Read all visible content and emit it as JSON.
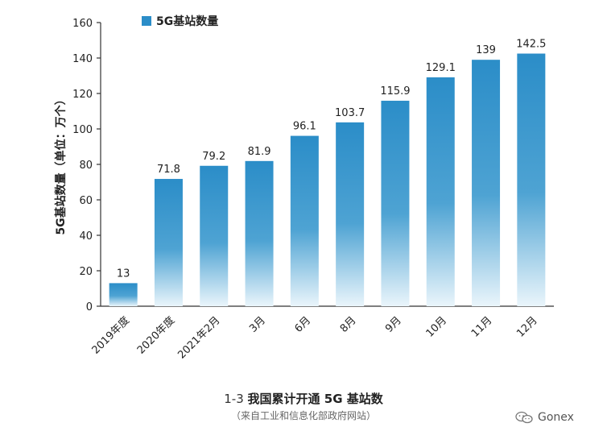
{
  "chart_data": {
    "type": "bar",
    "categories": [
      "2019年度",
      "2020年度",
      "2021年2月",
      "3月",
      "6月",
      "8月",
      "9月",
      "10月",
      "11月",
      "12月"
    ],
    "values": [
      13,
      71.8,
      79.2,
      81.9,
      96.1,
      103.7,
      115.9,
      129.1,
      139,
      142.5
    ],
    "value_labels": [
      "13",
      "71.8",
      "79.2",
      "81.9",
      "96.1",
      "103.7",
      "115.9",
      "129.1",
      "139",
      "142.5"
    ],
    "ylabel": "5G基站数量（单位：万个）",
    "xlabel": "",
    "ylim": [
      0,
      160
    ],
    "yticks": [
      0,
      20,
      40,
      60,
      80,
      100,
      120,
      140,
      160
    ],
    "legend": {
      "label": "5G基站数量",
      "placement": "top-left"
    },
    "grid": false,
    "colors": {
      "bar_top": "#2b8dc8",
      "bar_bottom": "#eaf5fb",
      "legend_swatch": "#2b8dc8",
      "axis": "#333333"
    }
  },
  "caption": {
    "number": "1-3",
    "title": "我国累计开通 5G 基站数",
    "source": "（来自工业和信息化部政府网站）"
  },
  "watermark": {
    "text": "Gonex",
    "icon": "wechat-icon"
  }
}
